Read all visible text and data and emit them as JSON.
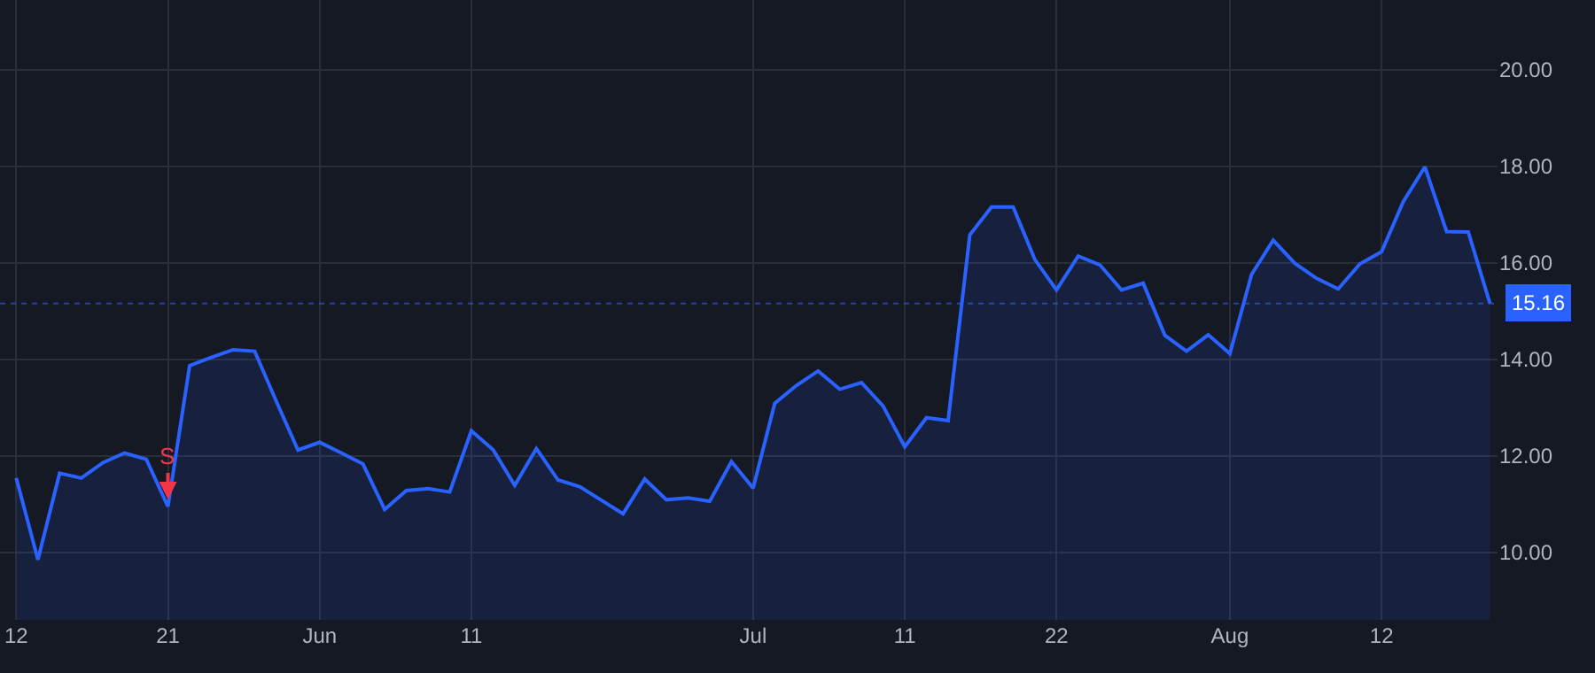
{
  "chart_data": {
    "type": "area",
    "categories": [
      "12",
      null,
      null,
      null,
      null,
      null,
      null,
      "21",
      null,
      null,
      null,
      null,
      null,
      null,
      "Jun",
      null,
      null,
      null,
      null,
      null,
      null,
      "11",
      null,
      null,
      null,
      null,
      null,
      null,
      null,
      null,
      null,
      null,
      null,
      null,
      "Jul",
      null,
      null,
      null,
      null,
      null,
      null,
      "11",
      null,
      null,
      null,
      null,
      null,
      null,
      "22",
      null,
      null,
      null,
      null,
      null,
      null,
      null,
      "Aug",
      null,
      null,
      null,
      null,
      null,
      null,
      "12",
      null,
      null,
      null,
      null,
      null
    ],
    "series": [
      {
        "color": "#2962ff",
        "values": [
          11.54,
          9.85,
          11.64,
          11.54,
          11.86,
          12.06,
          11.93,
          10.95,
          13.87,
          14.04,
          14.2,
          14.17,
          13.13,
          12.12,
          12.28,
          12.06,
          11.83,
          10.89,
          11.28,
          11.32,
          11.25,
          12.52,
          12.13,
          11.39,
          12.15,
          11.5,
          11.36,
          11.08,
          10.8,
          11.52,
          11.09,
          11.13,
          11.06,
          11.88,
          11.33,
          13.09,
          13.46,
          13.76,
          13.38,
          13.52,
          13.03,
          12.19,
          12.79,
          12.73,
          16.58,
          17.16,
          17.16,
          16.07,
          15.44,
          16.14,
          15.96,
          15.44,
          15.58,
          14.5,
          14.17,
          14.51,
          14.12,
          15.76,
          16.47,
          15.99,
          15.68,
          15.46,
          15.98,
          16.23,
          17.27,
          17.99,
          16.65,
          16.64,
          15.16
        ]
      }
    ],
    "ylim": [
      8.6,
      21.45
    ],
    "yticks": [
      {
        "value": 10,
        "label": "10.00"
      },
      {
        "value": 12,
        "label": "12.00"
      },
      {
        "value": 14,
        "label": "14.00"
      },
      {
        "value": 16,
        "label": "16.00"
      },
      {
        "value": 18,
        "label": "18.00"
      },
      {
        "value": 20,
        "label": "20.00"
      }
    ],
    "grid": true,
    "ref_lines": [
      {
        "axis": "y",
        "value": 15.16,
        "label": "15.16",
        "color": "#2962ff",
        "line_style": "dotted"
      }
    ],
    "annotations": [
      {
        "text": "S",
        "x": "21",
        "y": 10.95
      }
    ]
  }
}
